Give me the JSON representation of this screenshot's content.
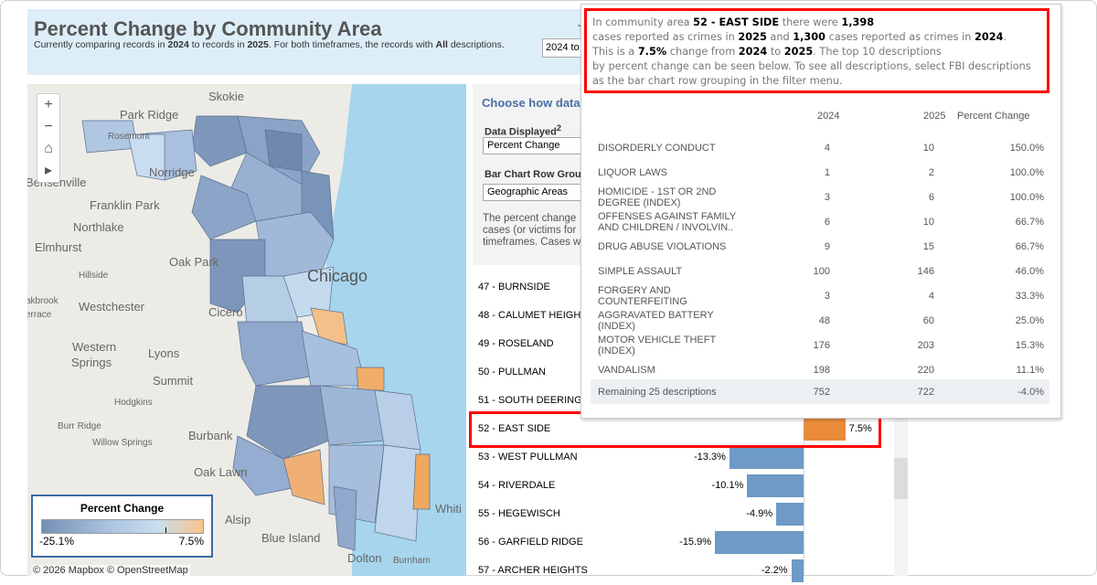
{
  "header": {
    "title": "Percent Change by Community Area",
    "subtitle_parts": [
      "Currently comparing records in ",
      "2024",
      " to records in ",
      "2025",
      ". For both timeframes, the records with ",
      "All",
      " descriptions."
    ],
    "timeframe_label": "T",
    "timeframe_value": "2024 to"
  },
  "map": {
    "labels": [
      "Skokie",
      "Park Ridge",
      "Rosemont",
      "Norridge",
      "Bensenville",
      "Franklin Park",
      "Northlake",
      "Elmhurst",
      "Hillside",
      "Oak Park",
      "Chicago",
      "Westchester",
      "Cicero",
      "Western",
      "Springs",
      "Lyons",
      "Summit",
      "Hodgkins",
      "Burr Ridge",
      "Willow Springs",
      "Burbank",
      "Oak Lawn",
      "Alsip",
      "Blue Island",
      "Dolton",
      "Burnham",
      "Whiti",
      "akbrook",
      "errace"
    ],
    "zoom_in": "+",
    "zoom_out": "−",
    "home": "⌂",
    "expand": "▸",
    "attribution": "© 2026 Mapbox  © OpenStreetMap",
    "legend": {
      "title": "Percent Change",
      "min": "-25.1%",
      "max": "7.5%",
      "colors": [
        "#7590b4",
        "#c7deee",
        "#f8c48a"
      ]
    }
  },
  "filters": {
    "heading": "Choose how data",
    "data_displayed_label": "Data Displayed",
    "footnote": "2",
    "data_displayed_value": "Percent Change",
    "grouping_label": "Bar Chart Row Grou",
    "grouping_value": "Geographic Areas",
    "text": "The percent change cases (or victims for timeframes. Cases w"
  },
  "chart_data": {
    "type": "bar",
    "orientation": "horizontal",
    "unit": "%",
    "categories": [
      "47 - BURNSIDE",
      "48 - CALUMET HEIGH",
      "49 - ROSELAND",
      "50 - PULLMAN",
      "51 - SOUTH DEERING",
      "52 - EAST SIDE",
      "53 - WEST PULLMAN",
      "54 - RIVERDALE",
      "55 - HEGEWISCH",
      "56 - GARFIELD RIDGE",
      "57 - ARCHER HEIGHTS"
    ],
    "values": [
      null,
      null,
      null,
      null,
      null,
      7.5,
      -13.3,
      -10.1,
      -4.9,
      -15.9,
      -2.2
    ],
    "labels": [
      "",
      "",
      "",
      "",
      "",
      "7.5%",
      "-13.3%",
      "-10.1%",
      "-4.9%",
      "-15.9%",
      "-2.2%"
    ],
    "colors": {
      "positive": "#e98b39",
      "negative": "#6e9ac6"
    },
    "highlighted": "52 - EAST SIDE"
  },
  "tooltip": {
    "p": [
      "In community area ",
      "52 - EAST SIDE",
      " there were ",
      "1,398",
      "cases reported as crimes in ",
      "2025",
      " and ",
      "1,300",
      " cases reported as crimes in ",
      "2024",
      ".",
      "This is a ",
      "7.5%",
      " change from ",
      "2024",
      " to ",
      "2025",
      ". The top 10 descriptions",
      "by percent change can be seen below. To see all descriptions, select FBI descriptions",
      "as the bar chart row grouping in the filter menu."
    ],
    "columns": [
      "2024",
      "2025",
      "Percent Change"
    ],
    "rows": [
      {
        "d": "DISORDERLY CONDUCT",
        "a": "4",
        "b": "10",
        "c": "150.0%"
      },
      {
        "d": "LIQUOR LAWS",
        "a": "1",
        "b": "2",
        "c": "100.0%"
      },
      {
        "d": "HOMICIDE - 1ST OR 2ND DEGREE (INDEX)",
        "a": "3",
        "b": "6",
        "c": "100.0%"
      },
      {
        "d": "OFFENSES AGAINST FAMILY AND CHILDREN / INVOLVIN..",
        "a": "6",
        "b": "10",
        "c": "66.7%"
      },
      {
        "d": "DRUG ABUSE VIOLATIONS",
        "a": "9",
        "b": "15",
        "c": "66.7%"
      },
      {
        "d": "SIMPLE ASSAULT",
        "a": "100",
        "b": "146",
        "c": "46.0%"
      },
      {
        "d": "FORGERY AND COUNTERFEITING",
        "a": "3",
        "b": "4",
        "c": "33.3%"
      },
      {
        "d": "AGGRAVATED BATTERY (INDEX)",
        "a": "48",
        "b": "60",
        "c": "25.0%"
      },
      {
        "d": "MOTOR VEHICLE THEFT (INDEX)",
        "a": "176",
        "b": "203",
        "c": "15.3%"
      },
      {
        "d": "VANDALISM",
        "a": "198",
        "b": "220",
        "c": "11.1%"
      }
    ],
    "remaining": {
      "d": "Remaining 25 descriptions",
      "a": "752",
      "b": "722",
      "c": "-4.0%"
    }
  }
}
